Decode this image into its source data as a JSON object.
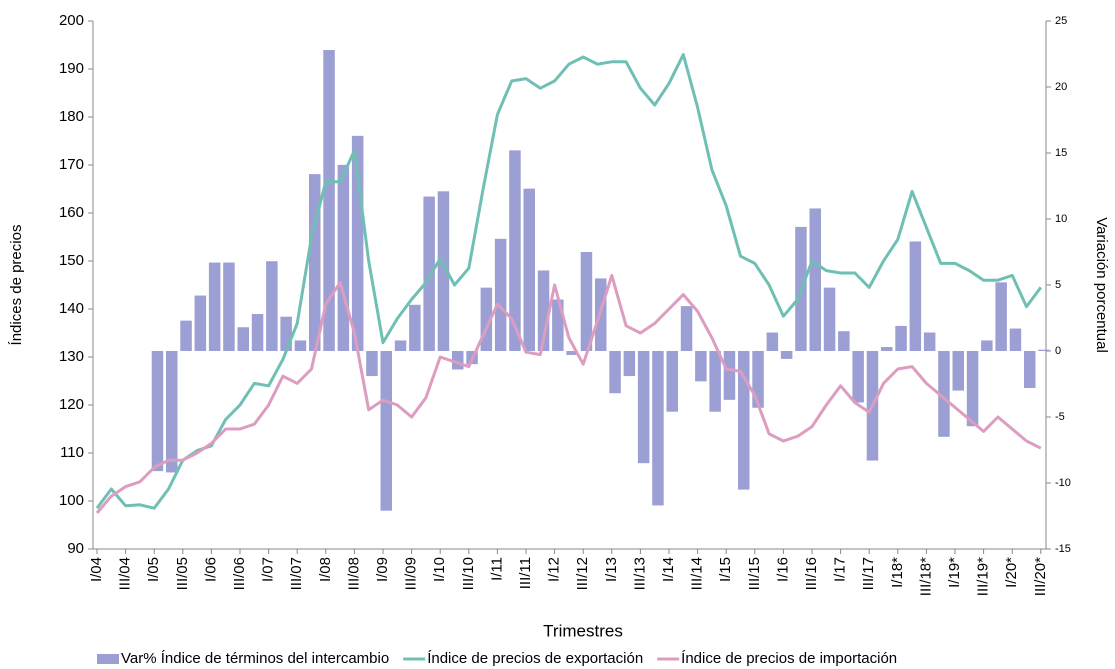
{
  "chart_data": {
    "type": "bar-line",
    "x_label": "Trimestres",
    "y_label": "Índices de precios",
    "y2_label": "Variación porcentual",
    "categories": [
      "I/04",
      null,
      "III/04",
      null,
      "I/05",
      null,
      "III/05",
      null,
      "I/06",
      null,
      "III/06",
      null,
      "I/07",
      null,
      "III/07",
      null,
      "I/08",
      null,
      "III/08",
      null,
      "I/09",
      null,
      "III/09",
      null,
      "I/10",
      null,
      "III/10",
      null,
      "I/11",
      null,
      "III/11",
      null,
      "I/12",
      null,
      "III/12",
      null,
      "I/13",
      null,
      "III/13",
      null,
      "I/14",
      null,
      "III/14",
      null,
      "I/15",
      null,
      "III/15",
      null,
      "I/16",
      null,
      "III/16",
      null,
      "I/17",
      null,
      "III/17",
      null,
      "I/18*",
      null,
      "III/18*",
      null,
      "I/19*",
      null,
      "III/19*",
      null,
      "I/20*",
      null,
      "III/20*"
    ],
    "ylim": [
      90,
      200
    ],
    "yticks": [
      90,
      100,
      110,
      120,
      130,
      140,
      150,
      160,
      170,
      180,
      190,
      200
    ],
    "y2lim": [
      -15,
      25
    ],
    "y2ticks": [
      -15,
      -10,
      -5,
      0,
      5,
      10,
      15,
      20,
      25
    ],
    "legend": "bottom",
    "series": [
      {
        "name": "Var% Índice de términos del intercambio",
        "type": "bar",
        "axis": "y2",
        "color": "#9c9fd3",
        "values": [
          null,
          null,
          null,
          null,
          -9.1,
          -9.2,
          2.3,
          4.2,
          6.7,
          6.7,
          1.8,
          2.8,
          6.8,
          2.6,
          0.8,
          13.4,
          22.8,
          14.1,
          16.3,
          -1.9,
          -12.1,
          0.8,
          3.5,
          11.7,
          12.1,
          -1.4,
          -1.0,
          4.8,
          8.5,
          15.2,
          12.3,
          6.1,
          3.9,
          -0.3,
          7.5,
          5.5,
          -3.2,
          -1.9,
          -8.5,
          -11.7,
          -4.6,
          3.4,
          -2.3,
          -4.6,
          -3.7,
          -10.5,
          -4.3,
          1.4,
          -0.6,
          9.4,
          10.8,
          4.8,
          1.5,
          -3.9,
          -8.3,
          0.3,
          1.9,
          8.3,
          1.4,
          -6.5,
          -3.0,
          -5.7,
          0.8,
          5.2,
          1.7,
          -2.8,
          0.1
        ]
      },
      {
        "name": "Índice de precios de exportación",
        "type": "line",
        "color": "#6fbfb5",
        "values": [
          98.5,
          102.5,
          99,
          99.2,
          98.5,
          102.5,
          108.5,
          110.5,
          111.5,
          117,
          120,
          124.5,
          124,
          129.5,
          137,
          155,
          166.5,
          166.5,
          173,
          150,
          133,
          138,
          142,
          145.5,
          150.5,
          145,
          148.5,
          165,
          180.5,
          187.5,
          188,
          186,
          187.5,
          191,
          192.5,
          191,
          191.5,
          191.5,
          186,
          182.5,
          187,
          193,
          182,
          169,
          161.5,
          151,
          149.5,
          145,
          138.5,
          142,
          150,
          148,
          147.5,
          147.5,
          144.5,
          150,
          154.5,
          164.5,
          157,
          149.5,
          149.5,
          148,
          146,
          146,
          147,
          140.5,
          144.5
        ]
      },
      {
        "name": "Índice de precios de importación",
        "type": "line",
        "color": "#dc9dc0",
        "values": [
          97.5,
          101,
          103,
          104,
          107,
          108.5,
          108.5,
          110,
          112,
          115,
          115,
          116,
          120,
          126,
          124.5,
          127.5,
          141,
          145.5,
          135,
          119,
          121,
          120,
          117.5,
          121.5,
          130,
          129,
          128,
          134.5,
          141,
          138,
          131,
          130.5,
          145,
          134,
          128.5,
          137.5,
          147,
          136.5,
          135,
          137,
          140,
          143,
          139.5,
          134,
          127.5,
          127,
          122,
          114,
          112.5,
          113.5,
          115.5,
          120,
          124,
          120.5,
          118.5,
          124.5,
          127.5,
          128,
          124.5,
          122,
          119.5,
          117,
          114.5,
          117.5,
          115,
          112.5,
          111
        ]
      }
    ]
  }
}
